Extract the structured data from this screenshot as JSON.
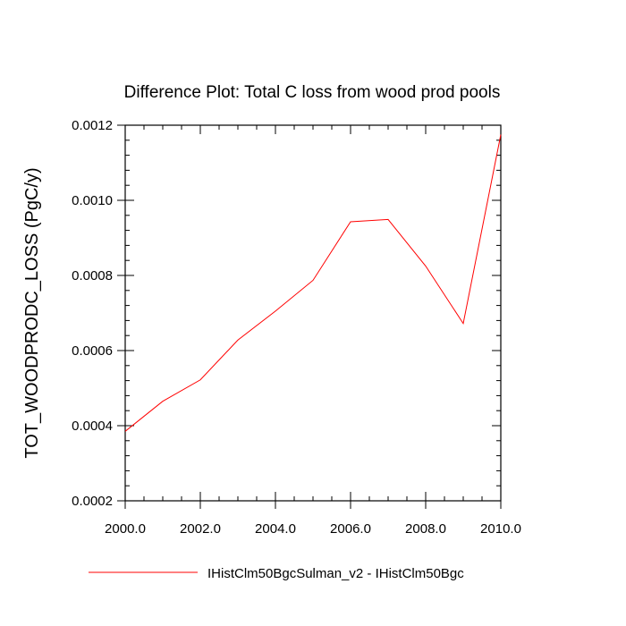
{
  "chart_data": {
    "type": "line",
    "title": "Difference Plot: Total C loss from wood prod pools",
    "xlabel": "",
    "ylabel": "TOT_WOODPRODC_LOSS  (PgC/y)",
    "xlim": [
      2000,
      2010
    ],
    "ylim": [
      0.0002,
      0.0012
    ],
    "x_ticks": [
      2000,
      2002,
      2004,
      2006,
      2008,
      2010
    ],
    "x_tick_labels": [
      "2000.0",
      "2002.0",
      "2004.0",
      "2006.0",
      "2008.0",
      "2010.0"
    ],
    "y_ticks": [
      0.0002,
      0.0004,
      0.0006,
      0.0008,
      0.001,
      0.0012
    ],
    "y_tick_labels": [
      "0.0002",
      "0.0004",
      "0.0006",
      "0.0008",
      "0.0010",
      "0.0012"
    ],
    "grid": false,
    "legend_position": "bottom",
    "series": [
      {
        "name": "IHistClm50BgcSulman_v2 - IHistClm50Bgc",
        "color": "#ff0000",
        "x": [
          2000,
          2001,
          2002,
          2003,
          2004,
          2005,
          2006,
          2007,
          2008,
          2009,
          2010
        ],
        "y": [
          0.000385,
          0.000465,
          0.000522,
          0.000628,
          0.000705,
          0.000787,
          0.000943,
          0.000949,
          0.000825,
          0.000672,
          0.001175
        ]
      }
    ]
  }
}
